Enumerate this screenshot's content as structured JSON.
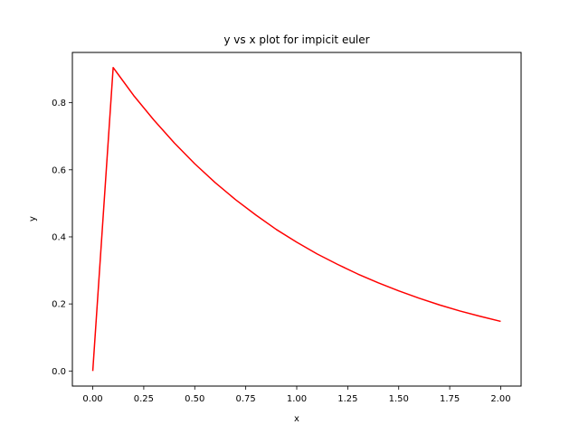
{
  "chart_data": {
    "type": "line",
    "title": "y vs x plot for impicit euler",
    "xlabel": "x",
    "ylabel": "y",
    "xlim": [
      -0.1,
      2.1
    ],
    "ylim": [
      -0.045,
      0.95
    ],
    "xticks": [
      0.0,
      0.25,
      0.5,
      0.75,
      1.0,
      1.25,
      1.5,
      1.75,
      2.0
    ],
    "xtick_labels": [
      "0.00",
      "0.25",
      "0.50",
      "0.75",
      "1.00",
      "1.25",
      "1.50",
      "1.75",
      "2.00"
    ],
    "yticks": [
      0.0,
      0.2,
      0.4,
      0.6,
      0.8
    ],
    "ytick_labels": [
      "0.0",
      "0.2",
      "0.4",
      "0.6",
      "0.8"
    ],
    "grid": false,
    "series": [
      {
        "color": "#ff0000",
        "x": [
          0.0,
          0.1,
          0.2,
          0.3,
          0.4,
          0.5,
          0.6,
          0.7,
          0.8,
          0.9,
          1.0,
          1.1,
          1.2,
          1.3,
          1.4,
          1.5,
          1.6,
          1.7,
          1.8,
          1.9,
          2.0
        ],
        "y": [
          0.0,
          0.905,
          0.822,
          0.748,
          0.68,
          0.618,
          0.562,
          0.511,
          0.465,
          0.422,
          0.384,
          0.349,
          0.318,
          0.289,
          0.263,
          0.239,
          0.217,
          0.197,
          0.179,
          0.163,
          0.148
        ]
      }
    ]
  }
}
